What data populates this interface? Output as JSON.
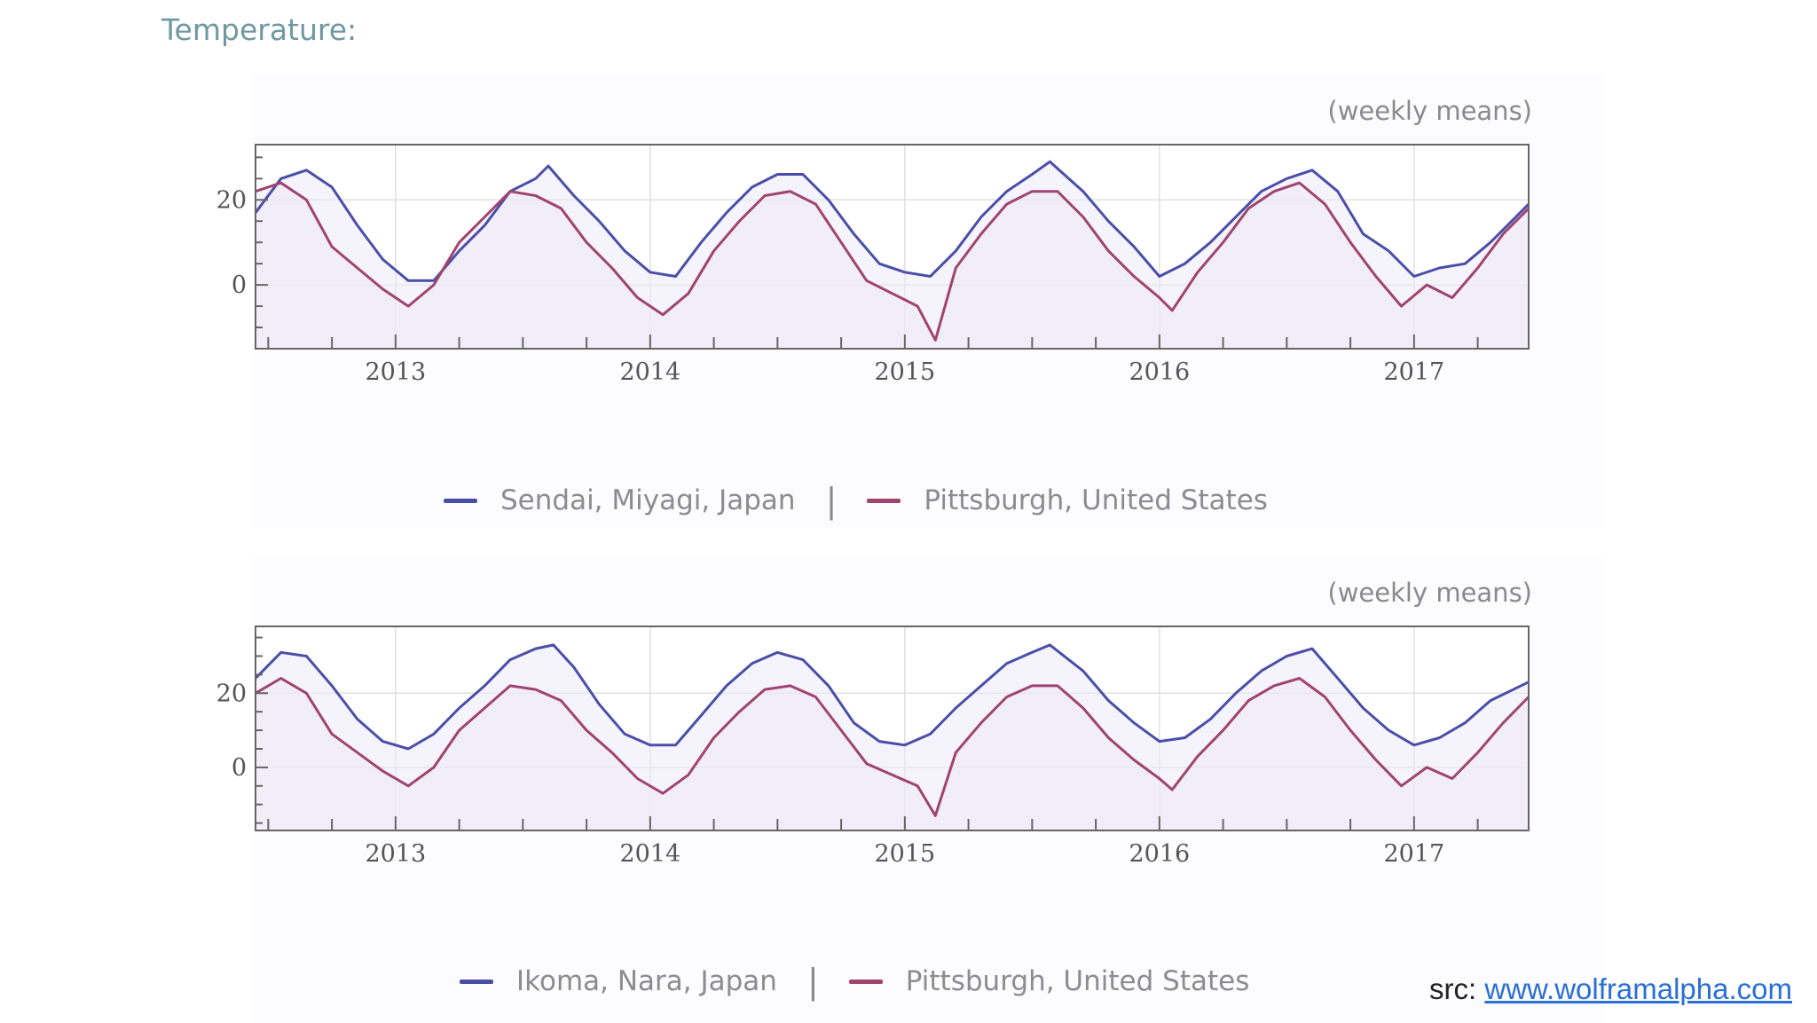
{
  "slide": {
    "title": "Temperature:",
    "source_prefix": "src:",
    "source_link": "www.wolframalpha.com"
  },
  "colors": {
    "japan_series": "#4b4ea8",
    "pittsburgh_series": "#a0446f",
    "fill": "#ece9f8",
    "grid": "#e0e0e0",
    "axis": "#666666"
  },
  "chart_data": [
    {
      "type": "line",
      "subtitle": "(weekly means)",
      "xlim": [
        2012.45,
        2017.45
      ],
      "ylim": [
        -15,
        33
      ],
      "x_ticks": [
        2013,
        2014,
        2015,
        2016,
        2017
      ],
      "x_tick_labels": [
        "2013",
        "2014",
        "2015",
        "2016",
        "2017"
      ],
      "y_ticks": [
        0,
        20
      ],
      "y_tick_labels": [
        "0",
        "20"
      ],
      "series": [
        {
          "name": "Sendai, Miyagi, Japan",
          "color": "#4b4ea8",
          "x": [
            2012.45,
            2012.55,
            2012.65,
            2012.75,
            2012.85,
            2012.95,
            2013.05,
            2013.15,
            2013.25,
            2013.35,
            2013.45,
            2013.55,
            2013.6,
            2013.7,
            2013.8,
            2013.9,
            2014.0,
            2014.1,
            2014.2,
            2014.3,
            2014.4,
            2014.5,
            2014.6,
            2014.7,
            2014.8,
            2014.9,
            2015.0,
            2015.1,
            2015.2,
            2015.3,
            2015.4,
            2015.5,
            2015.57,
            2015.7,
            2015.8,
            2015.9,
            2016.0,
            2016.1,
            2016.2,
            2016.3,
            2016.4,
            2016.5,
            2016.6,
            2016.7,
            2016.8,
            2016.9,
            2017.0,
            2017.1,
            2017.2,
            2017.3,
            2017.45
          ],
          "values": [
            17,
            25,
            27,
            23,
            14,
            6,
            1,
            1,
            8,
            14,
            22,
            25,
            28,
            21,
            15,
            8,
            3,
            2,
            10,
            17,
            23,
            26,
            26,
            20,
            12,
            5,
            3,
            2,
            8,
            16,
            22,
            26,
            29,
            22,
            15,
            9,
            2,
            5,
            10,
            16,
            22,
            25,
            27,
            22,
            12,
            8,
            2,
            4,
            5,
            10,
            19
          ]
        },
        {
          "name": "Pittsburgh, United States",
          "color": "#a0446f",
          "x": [
            2012.45,
            2012.55,
            2012.65,
            2012.75,
            2012.85,
            2012.95,
            2013.05,
            2013.15,
            2013.25,
            2013.35,
            2013.45,
            2013.55,
            2013.65,
            2013.75,
            2013.85,
            2013.95,
            2014.05,
            2014.15,
            2014.25,
            2014.35,
            2014.45,
            2014.55,
            2014.65,
            2014.75,
            2014.85,
            2014.95,
            2015.05,
            2015.12,
            2015.2,
            2015.3,
            2015.4,
            2015.5,
            2015.6,
            2015.7,
            2015.8,
            2015.9,
            2016.0,
            2016.05,
            2016.15,
            2016.25,
            2016.35,
            2016.45,
            2016.55,
            2016.65,
            2016.75,
            2016.85,
            2016.95,
            2017.05,
            2017.15,
            2017.25,
            2017.35,
            2017.45
          ],
          "values": [
            22,
            24,
            20,
            9,
            4,
            -1,
            -5,
            0,
            10,
            16,
            22,
            21,
            18,
            10,
            4,
            -3,
            -7,
            -2,
            8,
            15,
            21,
            22,
            19,
            10,
            1,
            -2,
            -5,
            -13,
            4,
            12,
            19,
            22,
            22,
            16,
            8,
            2,
            -3,
            -6,
            3,
            10,
            18,
            22,
            24,
            19,
            10,
            2,
            -5,
            0,
            -3,
            4,
            12,
            18
          ]
        }
      ]
    },
    {
      "type": "line",
      "subtitle": "(weekly means)",
      "xlim": [
        2012.45,
        2017.45
      ],
      "ylim": [
        -17,
        38
      ],
      "x_ticks": [
        2013,
        2014,
        2015,
        2016,
        2017
      ],
      "x_tick_labels": [
        "2013",
        "2014",
        "2015",
        "2016",
        "2017"
      ],
      "y_ticks": [
        0,
        20
      ],
      "y_tick_labels": [
        "0",
        "20"
      ],
      "series": [
        {
          "name": "Ikoma, Nara, Japan",
          "color": "#4b4ea8",
          "x": [
            2012.45,
            2012.55,
            2012.65,
            2012.75,
            2012.85,
            2012.95,
            2013.05,
            2013.15,
            2013.25,
            2013.35,
            2013.45,
            2013.55,
            2013.62,
            2013.7,
            2013.8,
            2013.9,
            2014.0,
            2014.1,
            2014.2,
            2014.3,
            2014.4,
            2014.5,
            2014.6,
            2014.7,
            2014.8,
            2014.9,
            2015.0,
            2015.1,
            2015.2,
            2015.3,
            2015.4,
            2015.5,
            2015.57,
            2015.7,
            2015.8,
            2015.9,
            2016.0,
            2016.1,
            2016.2,
            2016.3,
            2016.4,
            2016.5,
            2016.6,
            2016.7,
            2016.8,
            2016.9,
            2017.0,
            2017.1,
            2017.2,
            2017.3,
            2017.45
          ],
          "values": [
            24,
            31,
            30,
            22,
            13,
            7,
            5,
            9,
            16,
            22,
            29,
            32,
            33,
            27,
            17,
            9,
            6,
            6,
            14,
            22,
            28,
            31,
            29,
            22,
            12,
            7,
            6,
            9,
            16,
            22,
            28,
            31,
            33,
            26,
            18,
            12,
            7,
            8,
            13,
            20,
            26,
            30,
            32,
            24,
            16,
            10,
            6,
            8,
            12,
            18,
            23
          ]
        },
        {
          "name": "Pittsburgh, United States",
          "color": "#a0446f",
          "x": [
            2012.45,
            2012.55,
            2012.65,
            2012.75,
            2012.85,
            2012.95,
            2013.05,
            2013.15,
            2013.25,
            2013.35,
            2013.45,
            2013.55,
            2013.65,
            2013.75,
            2013.85,
            2013.95,
            2014.05,
            2014.15,
            2014.25,
            2014.35,
            2014.45,
            2014.55,
            2014.65,
            2014.75,
            2014.85,
            2014.95,
            2015.05,
            2015.12,
            2015.2,
            2015.3,
            2015.4,
            2015.5,
            2015.6,
            2015.7,
            2015.8,
            2015.9,
            2016.0,
            2016.05,
            2016.15,
            2016.25,
            2016.35,
            2016.45,
            2016.55,
            2016.65,
            2016.75,
            2016.85,
            2016.95,
            2017.05,
            2017.15,
            2017.25,
            2017.35,
            2017.45
          ],
          "values": [
            20,
            24,
            20,
            9,
            4,
            -1,
            -5,
            0,
            10,
            16,
            22,
            21,
            18,
            10,
            4,
            -3,
            -7,
            -2,
            8,
            15,
            21,
            22,
            19,
            10,
            1,
            -2,
            -5,
            -13,
            4,
            12,
            19,
            22,
            22,
            16,
            8,
            2,
            -3,
            -6,
            3,
            10,
            18,
            22,
            24,
            19,
            10,
            2,
            -5,
            0,
            -3,
            4,
            12,
            19
          ]
        }
      ]
    }
  ]
}
